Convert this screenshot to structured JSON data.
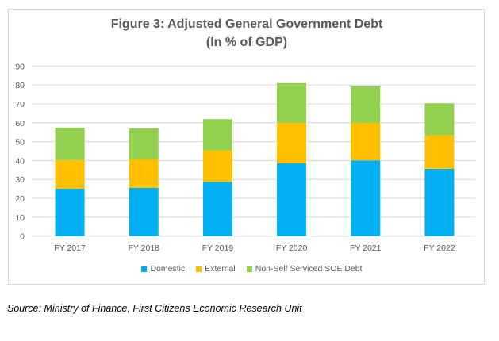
{
  "chart_data": {
    "type": "bar",
    "stacked": true,
    "title": "Figure 3: Adjusted General Government Debt",
    "subtitle": "(In % of GDP)",
    "xlabel": "",
    "ylabel": "",
    "ylim": [
      0,
      90
    ],
    "yticks": [
      0,
      10,
      20,
      30,
      40,
      50,
      60,
      70,
      80,
      90
    ],
    "grid": true,
    "legend_position": "bottom",
    "categories": [
      "FY 2017",
      "FY 2018",
      "FY 2019",
      "FY 2020",
      "FY 2021",
      "FY 2022"
    ],
    "series": [
      {
        "name": "Domestic",
        "color": "#00B0F0",
        "values": [
          25.1,
          25.5,
          28.7,
          38.5,
          40.1,
          35.6
        ]
      },
      {
        "name": "External",
        "color": "#FFC000",
        "values": [
          15.2,
          15.3,
          16.6,
          21.5,
          19.9,
          17.8
        ]
      },
      {
        "name": "Non-Self Serviced SOE Debt",
        "color": "#92D050",
        "values": [
          17.1,
          16.2,
          16.6,
          21.0,
          19.2,
          16.9
        ]
      }
    ]
  },
  "source_note": "Source: Ministry of Finance, First Citizens Economic Research Unit"
}
